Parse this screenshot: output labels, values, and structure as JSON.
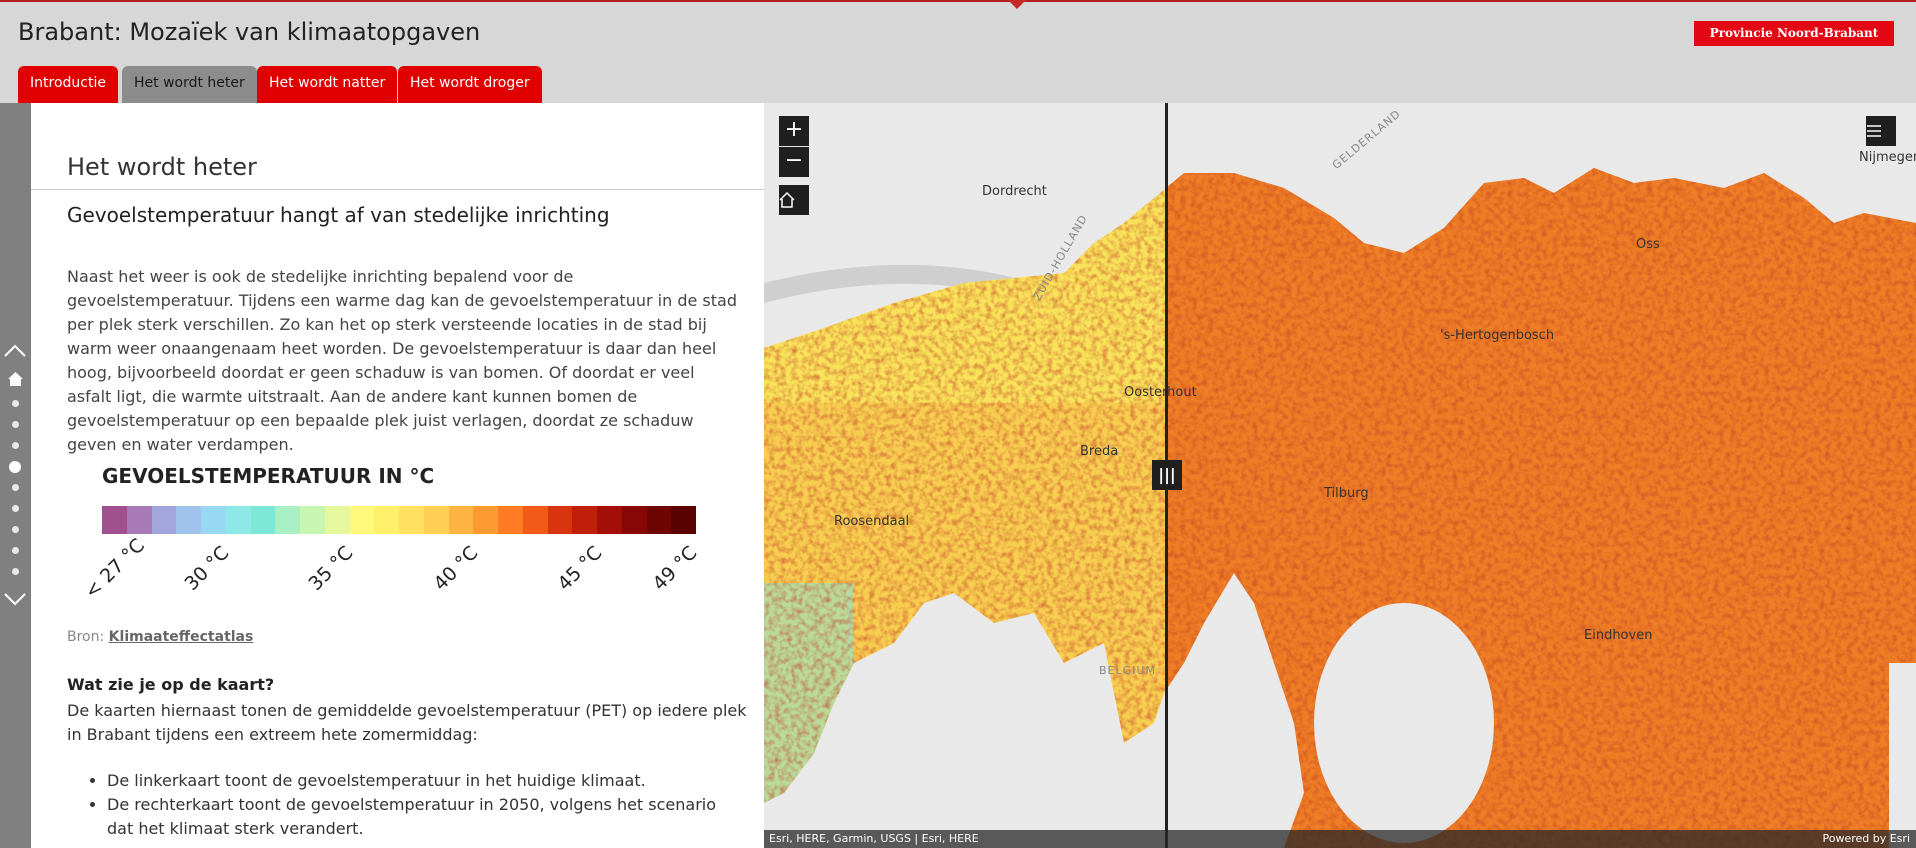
{
  "app": {
    "title": "Brabant: Mozaïek van klimaatopgaven",
    "brand_label": "Provincie Noord-Brabant"
  },
  "tabs": [
    {
      "label": "Introductie",
      "active": false
    },
    {
      "label": "Het wordt heter",
      "active": true
    },
    {
      "label": "Het wordt natter",
      "active": false
    },
    {
      "label": "Het wordt droger",
      "active": false
    }
  ],
  "nav": {
    "icons": [
      "chevron-up-icon",
      "home-icon",
      "chevron-down-icon"
    ],
    "current_entry": 4,
    "entry_count": 10
  },
  "section": {
    "title": "Het wordt heter",
    "subheading": "Gevoelstemperatuur hangt af van stedelijke inrichting",
    "body": "Naast het weer is ook de stedelijke inrichting bepalend voor de gevoelstemperatuur. Tijdens een warme dag kan de gevoelstemperatuur in de stad per plek sterk verschillen. Zo kan het op sterk versteende locaties in de stad bij warm weer onaangenaam heet worden. De gevoelstemperatuur is daar dan heel hoog, bijvoorbeeld doordat er geen schaduw is van bomen. Of doordat er veel asfalt ligt, die warmte uitstraalt. Aan de andere kant kunnen bomen de gevoelstemperatuur op een bepaalde plek juist verlagen, doordat ze schaduw geven en water verdampen."
  },
  "legend": {
    "title": "GEVOELSTEMPERATUUR IN °C",
    "colors": [
      "#a0508c",
      "#a87ab5",
      "#a3a6dc",
      "#9fc3ec",
      "#98d8f2",
      "#8fe8e8",
      "#7ee8d8",
      "#a8f0c4",
      "#c8f5b0",
      "#e6f7a0",
      "#fff97c",
      "#fff06c",
      "#ffe060",
      "#ffcf55",
      "#ffb443",
      "#ff9a32",
      "#ff7b24",
      "#f25a18",
      "#d8350e",
      "#c01f0a",
      "#a30f08",
      "#870606",
      "#6e0404",
      "#5a0202"
    ],
    "ticks": [
      "< 27 °C",
      "30 °C",
      "35 °C",
      "40 °C",
      "45 °C",
      "49 °C"
    ]
  },
  "source": {
    "prefix": "Bron:",
    "link": "Klimaateffectatlas"
  },
  "explainer": {
    "heading": "Wat zie je op de kaart?",
    "text": "De kaarten hiernaast tonen de gemiddelde gevoelstemperatuur (PET) op iedere plek in Brabant tijdens een extreem hete zomermiddag:",
    "bullets": [
      "De linkerkaart toont de gevoelstemperatuur in het huidige klimaat.",
      "De rechterkaart toont de gevoelstemperatuur in 2050, volgens het scenario dat het klimaat sterk verandert."
    ]
  },
  "map": {
    "controls": {
      "zoom_in": "+",
      "zoom_out": "−",
      "home": "home-icon",
      "layers": "list-icon",
      "swipe_handle": "|||"
    },
    "cities": [
      "Dordrecht",
      "Nijmegen",
      "Oosterhout",
      "Breda",
      "Roosendaal",
      "Tilburg",
      "'s-Hertogenbosch",
      "Oss",
      "Eindhoven"
    ],
    "regions": [
      "GELDERLAND",
      "ZUID-HOLLAND",
      "BELGIUM"
    ],
    "attribution": "Esri, HERE, Garmin, USGS | Esri, HERE",
    "powered_by": "Powered by Esri"
  }
}
